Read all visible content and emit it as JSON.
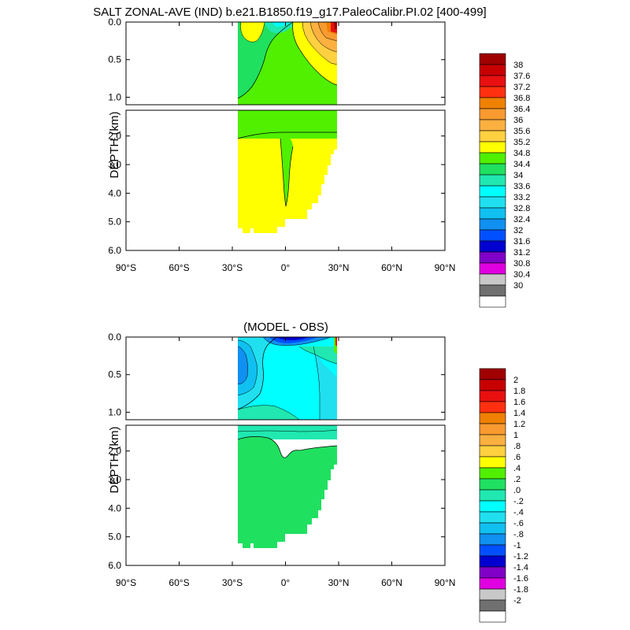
{
  "main_title": "SALT ZONAL-AVE (IND) b.e21.B1850.f19_g17.PaleoCalibr.PI.02 [400-499]",
  "chart_data": [
    {
      "type": "contour",
      "title": "",
      "ylabel": "DEPTH (km)",
      "x_ticks": [
        "90°S",
        "60°S",
        "30°S",
        "0°",
        "30°N",
        "60°N",
        "90°N"
      ],
      "xlim": [
        -90,
        90
      ],
      "y_ticks_upper": [
        "0.0",
        "0.5",
        "1.0"
      ],
      "y_ticks_lower": [
        "2.0",
        "3.0",
        "4.0",
        "5.0",
        "6.0"
      ],
      "ylim_upper": [
        0,
        1.1
      ],
      "ylim_lower": [
        1.1,
        6.0
      ],
      "data_lat_range": [
        -33,
        25
      ],
      "colorbar_labels": [
        "38",
        "37.6",
        "37.2",
        "36.8",
        "36.4",
        "36",
        "35.6",
        "35.2",
        "34.8",
        "34.4",
        "34",
        "33.6",
        "33.2",
        "32.8",
        "32.4",
        "32",
        "31.6",
        "31.2",
        "30.8",
        "30.4",
        "30"
      ],
      "colorbar_colors": [
        "#a00000",
        "#c80000",
        "#e81010",
        "#ff3010",
        "#f08000",
        "#f89a30",
        "#fbb040",
        "#ffd040",
        "#ffff00",
        "#50f000",
        "#20e060",
        "#20e8b0",
        "#00ffff",
        "#20e0f0",
        "#10c0f0",
        "#1090f0",
        "#0050ff",
        "#0000d0",
        "#8000c8",
        "#e000e0",
        "#c8c8c8",
        "#707070",
        "#ffffff"
      ]
    },
    {
      "type": "contour",
      "title": "(MODEL - OBS)",
      "ylabel": "DEPTH (km)",
      "x_ticks": [
        "90°S",
        "60°S",
        "30°S",
        "0°",
        "30°N",
        "60°N",
        "90°N"
      ],
      "xlim": [
        -90,
        90
      ],
      "y_ticks_upper": [
        "0.0",
        "0.5",
        "1.0"
      ],
      "y_ticks_lower": [
        "2.0",
        "3.0",
        "4.0",
        "5.0",
        "6.0"
      ],
      "ylim_upper": [
        0,
        1.1
      ],
      "ylim_lower": [
        1.1,
        6.0
      ],
      "data_lat_range": [
        -33,
        25
      ],
      "colorbar_labels": [
        "2",
        "1.8",
        "1.6",
        "1.4",
        "1.2",
        "1",
        ".8",
        ".6",
        ".4",
        ".2",
        ".0",
        "-.2",
        "-.4",
        "-.6",
        "-.8",
        "-1",
        "-1.2",
        "-1.4",
        "-1.6",
        "-1.8",
        "-2"
      ],
      "colorbar_colors": [
        "#a00000",
        "#c80000",
        "#e81010",
        "#ff3010",
        "#f08000",
        "#f89a30",
        "#fbb040",
        "#ffd040",
        "#ffff00",
        "#50f000",
        "#20e060",
        "#20e8b0",
        "#00ffff",
        "#20e0f0",
        "#10c0f0",
        "#1090f0",
        "#0050ff",
        "#0000d0",
        "#8000c8",
        "#e000e0",
        "#c8c8c8",
        "#707070",
        "#ffffff"
      ]
    }
  ]
}
